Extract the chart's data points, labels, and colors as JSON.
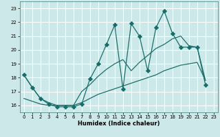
{
  "xlabel": "Humidex (Indice chaleur)",
  "xlim": [
    -0.5,
    23.5
  ],
  "ylim": [
    15.5,
    23.5
  ],
  "yticks": [
    16,
    17,
    18,
    19,
    20,
    21,
    22,
    23
  ],
  "xticks": [
    0,
    1,
    2,
    3,
    4,
    5,
    6,
    7,
    8,
    9,
    10,
    11,
    12,
    13,
    14,
    15,
    16,
    17,
    18,
    19,
    20,
    21,
    22,
    23
  ],
  "bg_color": "#cce8e8",
  "grid_color": "#ffffff",
  "line_color": "#1a6e6a",
  "series": [
    {
      "x": [
        0,
        1,
        2,
        3,
        4,
        5,
        6,
        7,
        8,
        9,
        10,
        11,
        12,
        13,
        14,
        15,
        16,
        17,
        18,
        19,
        20,
        21,
        22
      ],
      "y": [
        18.2,
        17.3,
        16.5,
        16.1,
        15.9,
        15.9,
        15.9,
        16.1,
        17.9,
        19.0,
        20.4,
        21.8,
        17.2,
        21.9,
        21.0,
        18.5,
        21.6,
        22.8,
        21.2,
        20.2,
        20.2,
        20.2,
        17.5
      ],
      "marker": "P",
      "markersize": 3.5,
      "linewidth": 0.9
    },
    {
      "x": [
        0,
        1,
        2,
        3,
        4,
        5,
        6,
        7,
        8,
        9,
        10,
        11,
        12,
        13,
        14,
        15,
        16,
        17,
        18,
        19,
        20,
        21,
        22
      ],
      "y": [
        18.2,
        17.3,
        16.5,
        16.2,
        16.0,
        16.0,
        16.0,
        17.0,
        17.5,
        18.1,
        18.6,
        19.0,
        19.3,
        18.5,
        19.1,
        19.6,
        20.1,
        20.4,
        20.8,
        21.0,
        20.3,
        20.2,
        17.8
      ],
      "marker": null,
      "markersize": 0,
      "linewidth": 0.9
    },
    {
      "x": [
        0,
        1,
        2,
        3,
        4,
        5,
        6,
        7,
        8,
        9,
        10,
        11,
        12,
        13,
        14,
        15,
        16,
        17,
        18,
        19,
        20,
        21,
        22
      ],
      "y": [
        16.5,
        16.3,
        16.1,
        16.0,
        16.0,
        16.0,
        16.0,
        16.2,
        16.5,
        16.8,
        17.0,
        17.2,
        17.4,
        17.6,
        17.8,
        18.0,
        18.2,
        18.5,
        18.7,
        18.9,
        19.0,
        19.1,
        17.8
      ],
      "marker": null,
      "markersize": 0,
      "linewidth": 0.9
    }
  ]
}
